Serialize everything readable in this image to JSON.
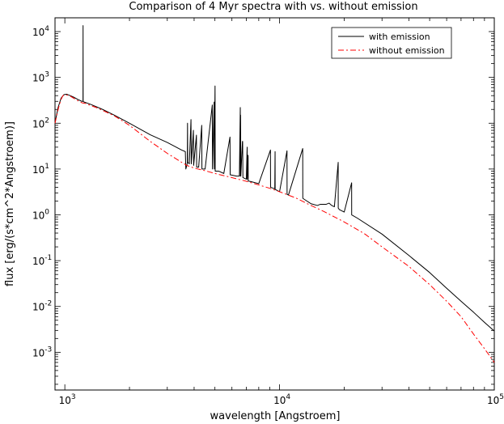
{
  "chart_data": {
    "type": "line",
    "title": "Comparison of 4 Myr spectra with vs. without emission",
    "xlabel": "wavelength [Angstroem]",
    "ylabel": "flux [erg/(s*cm^2*Angstroem)]",
    "x_scale": "log",
    "y_scale": "log",
    "xlim": [
      900,
      100000
    ],
    "ylim": [
      0.00015,
      20000
    ],
    "x_ticks": [
      {
        "value": 1000,
        "base": "10",
        "exp": "3"
      },
      {
        "value": 10000,
        "base": "10",
        "exp": "4"
      },
      {
        "value": 100000,
        "base": "10",
        "exp": "5"
      }
    ],
    "y_ticks": [
      {
        "value": 10000,
        "base": "10",
        "exp": "4"
      },
      {
        "value": 1000,
        "base": "10",
        "exp": "3"
      },
      {
        "value": 100,
        "base": "10",
        "exp": "2"
      },
      {
        "value": 10,
        "base": "10",
        "exp": "1"
      },
      {
        "value": 1,
        "base": "10",
        "exp": "0"
      },
      {
        "value": 0.1,
        "base": "10",
        "exp": "-1"
      },
      {
        "value": 0.01,
        "base": "10",
        "exp": "-2"
      },
      {
        "value": 0.001,
        "base": "10",
        "exp": "-3"
      }
    ],
    "grid": false,
    "legend_position": "top-right",
    "series": [
      {
        "name": "with emission",
        "color": "#000000",
        "style": "solid",
        "x": [
          900,
          930,
          960,
          990,
          1020,
          1060,
          1100,
          1150,
          1200,
          1215,
          1216,
          1217,
          1230,
          1300,
          1400,
          1500,
          1700,
          2000,
          2500,
          3000,
          3500,
          3640,
          3660,
          3700,
          3720,
          3727,
          3735,
          3800,
          3868,
          3880,
          3970,
          3980,
          4101,
          4110,
          4200,
          4340,
          4350,
          4500,
          4861,
          4870,
          4959,
          4965,
          5007,
          5015,
          5200,
          5500,
          5876,
          5890,
          6300,
          6500,
          6563,
          6570,
          6584,
          6600,
          6716,
          6731,
          6750,
          7000,
          7065,
          7075,
          7136,
          7145,
          7500,
          8000,
          9069,
          9080,
          9500,
          9531,
          9540,
          10000,
          10830,
          10840,
          11000,
          12818,
          12830,
          13000,
          14000,
          15000,
          15500,
          16000,
          16500,
          17000,
          17500,
          18000,
          18751,
          18760,
          19000,
          20000,
          21661,
          21670,
          23000,
          30000,
          40000,
          50000,
          60000,
          70000,
          80000,
          90000,
          100000
        ],
        "y": [
          100,
          220,
          350,
          420,
          430,
          400,
          370,
          330,
          300,
          300,
          13500,
          300,
          290,
          265,
          230,
          200,
          150,
          100,
          56,
          38,
          26,
          24,
          10,
          12,
          14,
          100,
          14,
          13,
          120,
          13,
          70,
          12,
          55,
          11,
          11,
          90,
          10,
          10,
          250,
          10,
          290,
          10,
          650,
          9,
          9,
          8,
          50,
          7.5,
          7,
          7,
          220,
          7,
          150,
          7,
          40,
          40,
          6.5,
          6,
          30,
          6,
          20,
          5.5,
          5.2,
          4.8,
          26,
          4,
          3.7,
          24,
          3.6,
          3.2,
          25,
          2.8,
          2.7,
          28,
          2.3,
          2.2,
          1.75,
          1.6,
          1.7,
          1.7,
          1.7,
          1.8,
          1.6,
          1.5,
          14,
          1.4,
          1.3,
          1.15,
          5,
          1.0,
          0.85,
          0.38,
          0.13,
          0.055,
          0.025,
          0.013,
          0.0075,
          0.0045,
          0.0029
        ]
      },
      {
        "name": "without emission",
        "color": "#ff0000",
        "style": "dash-dot",
        "x": [
          900,
          920,
          940,
          960,
          980,
          1000,
          1030,
          1060,
          1100,
          1150,
          1200,
          1250,
          1300,
          1400,
          1500,
          1700,
          2000,
          2500,
          3000,
          3500,
          3700,
          4000,
          4500,
          5000,
          6000,
          7000,
          8000,
          9000,
          10000,
          12000,
          14000,
          16000,
          18000,
          20000,
          25000,
          30000,
          40000,
          50000,
          60000,
          70000,
          80000,
          90000,
          100000
        ],
        "y": [
          100,
          160,
          240,
          330,
          400,
          420,
          410,
          390,
          350,
          310,
          280,
          270,
          250,
          220,
          190,
          145,
          90,
          40,
          22,
          14,
          12,
          10.5,
          9.2,
          8,
          6.5,
          5.4,
          4.5,
          3.8,
          3.2,
          2.3,
          1.6,
          1.2,
          0.9,
          0.7,
          0.38,
          0.2,
          0.075,
          0.03,
          0.013,
          0.006,
          0.0025,
          0.0012,
          0.0006
        ]
      }
    ]
  }
}
